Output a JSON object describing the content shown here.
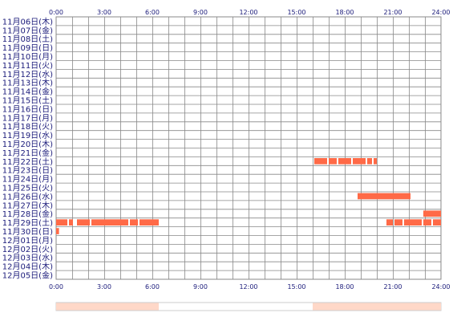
{
  "chart_data": {
    "type": "heatmap",
    "title": "",
    "xlabel": "",
    "ylabel": "",
    "x_range_hours": [
      0,
      24
    ],
    "x_ticks": [
      "0:00",
      "3:00",
      "6:00",
      "9:00",
      "12:00",
      "15:00",
      "18:00",
      "21:00",
      "24:00"
    ],
    "grid": true,
    "colors": {
      "activity": "#ff6a47",
      "summary": "#ffd8c8",
      "grid": "#888888",
      "label": "#1a1a7a"
    },
    "rows": [
      "11月06日(木)",
      "11月07日(金)",
      "11月08日(土)",
      "11月09日(日)",
      "11月10日(月)",
      "11月11日(火)",
      "11月12日(水)",
      "11月13日(木)",
      "11月14日(金)",
      "11月15日(土)",
      "11月16日(日)",
      "11月17日(月)",
      "11月18日(火)",
      "11月19日(水)",
      "11月20日(木)",
      "11月21日(金)",
      "11月22日(土)",
      "11月23日(日)",
      "11月24日(月)",
      "11月25日(火)",
      "11月26日(水)",
      "11月27日(木)",
      "11月28日(金)",
      "11月29日(土)",
      "11月30日(日)",
      "12月01日(月)",
      "12月02日(火)",
      "12月03日(水)",
      "12月04日(木)",
      "12月05日(金)"
    ],
    "segments": [
      {
        "row": 16,
        "start": 16.1,
        "end": 16.9
      },
      {
        "row": 16,
        "start": 17.0,
        "end": 17.5
      },
      {
        "row": 16,
        "start": 17.6,
        "end": 18.4
      },
      {
        "row": 16,
        "start": 18.5,
        "end": 19.3
      },
      {
        "row": 16,
        "start": 19.4,
        "end": 19.7
      },
      {
        "row": 16,
        "start": 19.8,
        "end": 20.0
      },
      {
        "row": 20,
        "start": 18.8,
        "end": 22.1
      },
      {
        "row": 22,
        "start": 22.9,
        "end": 24.0
      },
      {
        "row": 23,
        "start": 0.0,
        "end": 0.7
      },
      {
        "row": 23,
        "start": 0.8,
        "end": 1.05
      },
      {
        "row": 23,
        "start": 1.3,
        "end": 2.1
      },
      {
        "row": 23,
        "start": 2.2,
        "end": 4.5
      },
      {
        "row": 23,
        "start": 4.6,
        "end": 5.1
      },
      {
        "row": 23,
        "start": 5.2,
        "end": 6.4
      },
      {
        "row": 23,
        "start": 20.6,
        "end": 21.0
      },
      {
        "row": 23,
        "start": 21.1,
        "end": 21.6
      },
      {
        "row": 23,
        "start": 21.7,
        "end": 22.8
      },
      {
        "row": 23,
        "start": 22.9,
        "end": 23.4
      },
      {
        "row": 23,
        "start": 23.5,
        "end": 24.0
      },
      {
        "row": 24,
        "start": 0.0,
        "end": 0.18
      }
    ],
    "summary_segments": [
      {
        "start": 0.0,
        "end": 6.4
      },
      {
        "start": 16.0,
        "end": 24.0
      }
    ]
  }
}
